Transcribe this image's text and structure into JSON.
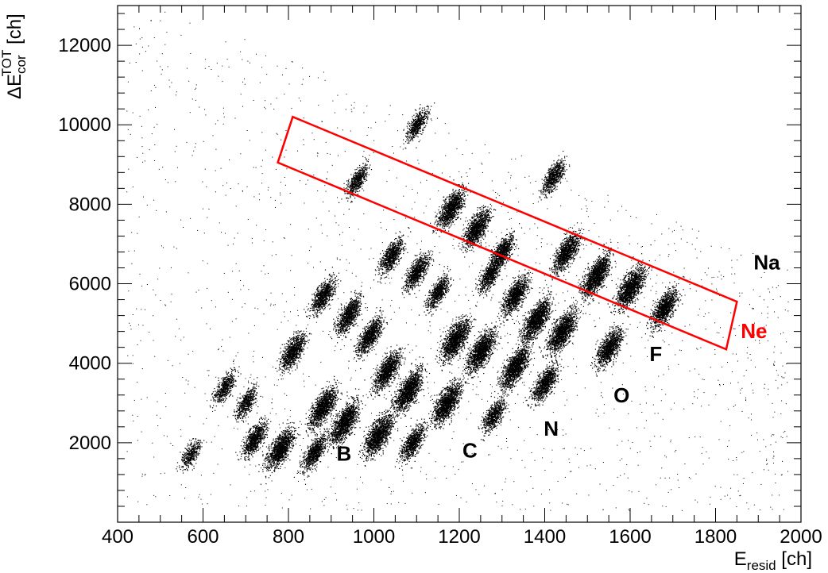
{
  "chart_data": {
    "type": "scatter",
    "title": "",
    "xlabel": {
      "main": "E",
      "sub": "resid",
      "unit": " [ch]"
    },
    "ylabel": {
      "prefix": "ΔE",
      "sup": "TOT",
      "sub": "cor",
      "unit": " [ch]"
    },
    "xlim": [
      400,
      2000
    ],
    "ylim": [
      0,
      13000
    ],
    "x_ticks": [
      400,
      600,
      800,
      1000,
      1200,
      1400,
      1600,
      1800,
      2000
    ],
    "y_ticks": [
      2000,
      4000,
      6000,
      8000,
      10000,
      12000
    ],
    "grid": false,
    "legend": "none",
    "colors": {
      "points": "#000000",
      "gate": "#ff0000",
      "label_default": "#000000"
    },
    "clusters": [
      {
        "x": 780,
        "y": 1850,
        "weight": 0.9
      },
      {
        "x": 860,
        "y": 1750,
        "weight": 0.6
      },
      {
        "x": 930,
        "y": 2500,
        "weight": 1.0
      },
      {
        "x": 1010,
        "y": 2200,
        "weight": 1.0
      },
      {
        "x": 1090,
        "y": 2000,
        "weight": 0.6
      },
      {
        "x": 880,
        "y": 2900,
        "weight": 0.9
      },
      {
        "x": 1080,
        "y": 3300,
        "weight": 1.0
      },
      {
        "x": 1170,
        "y": 3000,
        "weight": 1.0
      },
      {
        "x": 1280,
        "y": 2700,
        "weight": 0.5
      },
      {
        "x": 1030,
        "y": 3800,
        "weight": 0.8
      },
      {
        "x": 1330,
        "y": 3900,
        "weight": 1.0
      },
      {
        "x": 1400,
        "y": 3500,
        "weight": 0.7
      },
      {
        "x": 1190,
        "y": 4600,
        "weight": 1.0
      },
      {
        "x": 1250,
        "y": 4300,
        "weight": 1.0
      },
      {
        "x": 1380,
        "y": 5100,
        "weight": 1.0
      },
      {
        "x": 1440,
        "y": 4800,
        "weight": 1.0
      },
      {
        "x": 1550,
        "y": 4400,
        "weight": 0.8
      },
      {
        "x": 1330,
        "y": 5700,
        "weight": 0.8
      },
      {
        "x": 990,
        "y": 4700,
        "weight": 0.7
      },
      {
        "x": 940,
        "y": 5200,
        "weight": 0.7
      },
      {
        "x": 880,
        "y": 5700,
        "weight": 0.6
      },
      {
        "x": 810,
        "y": 4300,
        "weight": 0.7
      },
      {
        "x": 1040,
        "y": 6700,
        "weight": 0.6
      },
      {
        "x": 1100,
        "y": 6300,
        "weight": 0.6
      },
      {
        "x": 1150,
        "y": 5800,
        "weight": 0.5
      },
      {
        "x": 1270,
        "y": 6200,
        "weight": 0.5
      },
      {
        "x": 1180,
        "y": 7900,
        "weight": 0.8
      },
      {
        "x": 1240,
        "y": 7400,
        "weight": 0.8
      },
      {
        "x": 1300,
        "y": 6800,
        "weight": 0.6
      },
      {
        "x": 1450,
        "y": 6800,
        "weight": 0.8
      },
      {
        "x": 1520,
        "y": 6200,
        "weight": 1.0
      },
      {
        "x": 1600,
        "y": 5900,
        "weight": 1.0
      },
      {
        "x": 1680,
        "y": 5400,
        "weight": 0.8
      },
      {
        "x": 1100,
        "y": 10000,
        "weight": 0.4
      },
      {
        "x": 1420,
        "y": 8700,
        "weight": 0.5
      },
      {
        "x": 960,
        "y": 8600,
        "weight": 0.4
      },
      {
        "x": 700,
        "y": 3000,
        "weight": 0.4
      },
      {
        "x": 650,
        "y": 3400,
        "weight": 0.4
      },
      {
        "x": 720,
        "y": 2100,
        "weight": 0.6
      },
      {
        "x": 570,
        "y": 1700,
        "weight": 0.3
      }
    ],
    "gate": {
      "name": "Ne",
      "vertices": [
        [
          775,
          9050
        ],
        [
          810,
          10200
        ],
        [
          1850,
          5550
        ],
        [
          1825,
          4350
        ]
      ]
    },
    "labels": [
      {
        "text": "B",
        "x": 930,
        "y": 1550,
        "color": "#000000"
      },
      {
        "text": "C",
        "x": 1225,
        "y": 1630,
        "color": "#000000"
      },
      {
        "text": "N",
        "x": 1415,
        "y": 2180,
        "color": "#000000"
      },
      {
        "text": "O",
        "x": 1580,
        "y": 3020,
        "color": "#000000"
      },
      {
        "text": "F",
        "x": 1660,
        "y": 4050,
        "color": "#000000"
      },
      {
        "text": "Ne",
        "x": 1890,
        "y": 4630,
        "color": "#ff0000"
      },
      {
        "text": "Na",
        "x": 1920,
        "y": 6360,
        "color": "#000000"
      }
    ]
  }
}
